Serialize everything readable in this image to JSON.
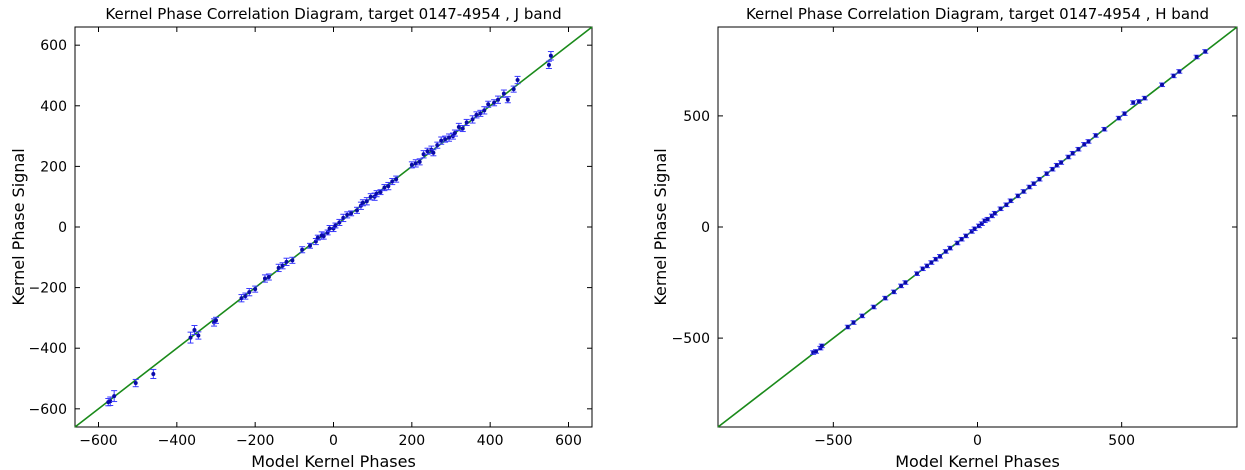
{
  "chart_data": [
    {
      "type": "scatter",
      "title": "Kernel Phase Correlation Diagram, target  0147-4954 , J band",
      "xlabel": "Model Kernel Phases",
      "ylabel": "Kernel Phase Signal",
      "xlim": [
        -660,
        660
      ],
      "ylim": [
        -660,
        660
      ],
      "xticks": [
        -600,
        -400,
        -200,
        0,
        200,
        400,
        600
      ],
      "yticks": [
        -600,
        -400,
        -200,
        0,
        200,
        400,
        600
      ],
      "xtick_labels": [
        "−600",
        "−400",
        "−200",
        "0",
        "200",
        "400",
        "600"
      ],
      "ytick_labels": [
        "−600",
        "−400",
        "−200",
        "0",
        "200",
        "400",
        "600"
      ],
      "fit_line": {
        "x": [
          -660,
          660
        ],
        "y": [
          -660,
          660
        ],
        "color": "#1a8a1a"
      },
      "series": [
        {
          "points": [
            [
              -575,
              -578,
              12
            ],
            [
              -570,
              -575,
              14
            ],
            [
              -560,
              -558,
              18
            ],
            [
              -505,
              -515,
              12
            ],
            [
              -460,
              -485,
              15
            ],
            [
              -365,
              -365,
              18
            ],
            [
              -355,
              -340,
              15
            ],
            [
              -345,
              -358,
              12
            ],
            [
              -305,
              -315,
              12
            ],
            [
              -300,
              -308,
              10
            ],
            [
              -235,
              -235,
              12
            ],
            [
              -225,
              -228,
              10
            ],
            [
              -215,
              -215,
              12
            ],
            [
              -200,
              -205,
              10
            ],
            [
              -175,
              -170,
              12
            ],
            [
              -165,
              -165,
              10
            ],
            [
              -140,
              -135,
              12
            ],
            [
              -130,
              -128,
              10
            ],
            [
              -120,
              -115,
              12
            ],
            [
              -105,
              -110,
              10
            ],
            [
              -80,
              -75,
              10
            ],
            [
              -60,
              -62,
              8
            ],
            [
              -45,
              -48,
              10
            ],
            [
              -40,
              -35,
              8
            ],
            [
              -30,
              -28,
              12
            ],
            [
              -25,
              -30,
              10
            ],
            [
              -15,
              -18,
              8
            ],
            [
              -10,
              -5,
              10
            ],
            [
              0,
              -5,
              10
            ],
            [
              5,
              5,
              8
            ],
            [
              15,
              15,
              10
            ],
            [
              25,
              30,
              12
            ],
            [
              35,
              40,
              10
            ],
            [
              45,
              45,
              8
            ],
            [
              60,
              55,
              10
            ],
            [
              70,
              70,
              12
            ],
            [
              75,
              80,
              10
            ],
            [
              85,
              85,
              12
            ],
            [
              95,
              100,
              10
            ],
            [
              105,
              100,
              12
            ],
            [
              110,
              110,
              10
            ],
            [
              120,
              115,
              8
            ],
            [
              130,
              130,
              10
            ],
            [
              140,
              135,
              12
            ],
            [
              150,
              150,
              10
            ],
            [
              160,
              158,
              10
            ],
            [
              200,
              205,
              10
            ],
            [
              210,
              210,
              12
            ],
            [
              220,
              215,
              10
            ],
            [
              230,
              240,
              12
            ],
            [
              240,
              250,
              10
            ],
            [
              250,
              255,
              12
            ],
            [
              255,
              245,
              10
            ],
            [
              265,
              270,
              10
            ],
            [
              275,
              285,
              12
            ],
            [
              285,
              290,
              10
            ],
            [
              295,
              295,
              12
            ],
            [
              305,
              300,
              10
            ],
            [
              310,
              310,
              10
            ],
            [
              320,
              330,
              12
            ],
            [
              330,
              325,
              10
            ],
            [
              340,
              345,
              10
            ],
            [
              355,
              355,
              12
            ],
            [
              365,
              370,
              10
            ],
            [
              375,
              375,
              10
            ],
            [
              385,
              385,
              12
            ],
            [
              395,
              405,
              10
            ],
            [
              410,
              410,
              10
            ],
            [
              420,
              420,
              12
            ],
            [
              435,
              440,
              12
            ],
            [
              445,
              420,
              10
            ],
            [
              460,
              455,
              10
            ],
            [
              470,
              485,
              12
            ],
            [
              550,
              535,
              12
            ],
            [
              555,
              565,
              14
            ]
          ]
        }
      ]
    },
    {
      "type": "scatter",
      "title": "Kernel Phase Correlation Diagram, target  0147-4954 , H band",
      "xlabel": "Model Kernel Phases",
      "ylabel": "Kernel Phase Signal",
      "xlim": [
        -900,
        900
      ],
      "ylim": [
        -900,
        900
      ],
      "xticks": [
        -500,
        0,
        500
      ],
      "yticks": [
        -500,
        0,
        500
      ],
      "xtick_labels": [
        "−500",
        "0",
        "500"
      ],
      "ytick_labels": [
        "−500",
        "0",
        "500"
      ],
      "fit_line": {
        "x": [
          -900,
          900
        ],
        "y": [
          -900,
          900
        ],
        "color": "#1a8a1a"
      },
      "series": [
        {
          "points": [
            [
              -570,
              -565,
              8
            ],
            [
              -560,
              -560,
              8
            ],
            [
              -545,
              -545,
              8
            ],
            [
              -540,
              -535,
              8
            ],
            [
              -450,
              -450,
              8
            ],
            [
              -430,
              -430,
              8
            ],
            [
              -400,
              -400,
              8
            ],
            [
              -360,
              -360,
              8
            ],
            [
              -320,
              -320,
              8
            ],
            [
              -290,
              -292,
              8
            ],
            [
              -265,
              -265,
              8
            ],
            [
              -250,
              -250,
              8
            ],
            [
              -210,
              -210,
              8
            ],
            [
              -190,
              -188,
              8
            ],
            [
              -175,
              -175,
              8
            ],
            [
              -160,
              -160,
              8
            ],
            [
              -145,
              -145,
              8
            ],
            [
              -130,
              -132,
              8
            ],
            [
              -110,
              -110,
              8
            ],
            [
              -95,
              -95,
              8
            ],
            [
              -70,
              -72,
              8
            ],
            [
              -55,
              -55,
              8
            ],
            [
              -40,
              -40,
              8
            ],
            [
              -20,
              -20,
              8
            ],
            [
              -10,
              -8,
              8
            ],
            [
              5,
              5,
              8
            ],
            [
              15,
              15,
              8
            ],
            [
              25,
              28,
              8
            ],
            [
              35,
              35,
              8
            ],
            [
              50,
              50,
              8
            ],
            [
              60,
              62,
              8
            ],
            [
              80,
              82,
              8
            ],
            [
              100,
              100,
              8
            ],
            [
              115,
              118,
              8
            ],
            [
              140,
              140,
              8
            ],
            [
              160,
              160,
              8
            ],
            [
              180,
              180,
              8
            ],
            [
              195,
              195,
              8
            ],
            [
              215,
              215,
              8
            ],
            [
              240,
              240,
              8
            ],
            [
              260,
              260,
              8
            ],
            [
              275,
              278,
              8
            ],
            [
              290,
              290,
              8
            ],
            [
              315,
              315,
              8
            ],
            [
              330,
              332,
              8
            ],
            [
              350,
              350,
              8
            ],
            [
              370,
              372,
              8
            ],
            [
              385,
              385,
              8
            ],
            [
              410,
              412,
              8
            ],
            [
              440,
              440,
              8
            ],
            [
              490,
              490,
              8
            ],
            [
              510,
              510,
              8
            ],
            [
              540,
              560,
              8
            ],
            [
              560,
              565,
              8
            ],
            [
              580,
              580,
              8
            ],
            [
              640,
              640,
              8
            ],
            [
              680,
              680,
              8
            ],
            [
              700,
              700,
              8
            ],
            [
              760,
              765,
              8
            ],
            [
              790,
              790,
              8
            ]
          ]
        }
      ]
    }
  ]
}
